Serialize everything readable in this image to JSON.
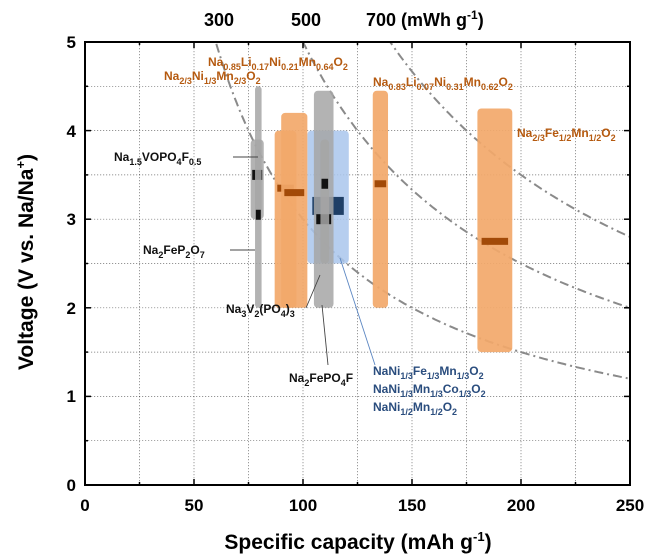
{
  "chart_data": {
    "type": "range",
    "xlabel": "Specific capacity (mAh g",
    "xlabel_sup": "-1",
    "xlabel_end": ")",
    "ylabel": "Voltage (V vs. Na/Na",
    "ylabel_sup": "+",
    "ylabel_end": ")",
    "xlim": [
      0,
      250
    ],
    "ylim": [
      0,
      5
    ],
    "x_ticks": [
      0,
      50,
      100,
      150,
      200,
      250
    ],
    "y_ticks": [
      0,
      1,
      2,
      3,
      4,
      5
    ],
    "grid": true,
    "top_axis": {
      "labels": [
        "300",
        "500",
        "700 (mWh g"
      ],
      "last_sup": "-1",
      "last_end": ")",
      "positions_x": [
        48,
        100,
        145
      ]
    },
    "energy_curves_mWh_per_g": [
      300,
      500,
      700
    ],
    "colors": {
      "orange": "#f2a86a",
      "orange_mark": "#a24a08",
      "orange_text": "#b55a10",
      "gray": "#a6a6a6",
      "gray_mark": "#111111",
      "blue": "#a9c6ec",
      "blue_mark": "#1f3f66",
      "blue_text": "#2a4d7e",
      "black_text": "#111111"
    },
    "materials": [
      {
        "name": "Na0.85Li0.17Ni0.21Mn0.64O2",
        "family": "orange",
        "x": [
          87,
          97
        ],
        "y": [
          2.0,
          4.0
        ],
        "mark": 3.35
      },
      {
        "name": "Na2/3Ni1/3Mn2/3O2",
        "family": "orange",
        "x": [
          90,
          102
        ],
        "y": [
          2.0,
          4.2
        ],
        "mark": 3.3
      },
      {
        "name": "Na0.83Li0.07Ni0.31Mn0.62O2",
        "family": "orange",
        "x": [
          132,
          139
        ],
        "y": [
          2.0,
          4.45
        ],
        "mark": 3.4
      },
      {
        "name": "Na2/3Fe1/2Mn1/2O2",
        "family": "orange",
        "x": [
          180,
          196
        ],
        "y": [
          1.5,
          4.25
        ],
        "mark": 2.75
      },
      {
        "name": "Na1.5VOPO4F0.5",
        "family": "gray",
        "x": [
          76,
          82
        ],
        "y": [
          3.0,
          3.9
        ],
        "mark": 3.5
      },
      {
        "name": "Na2FePO4F",
        "family": "gray",
        "x": [
          105,
          114
        ],
        "y": [
          2.0,
          4.45
        ],
        "mark": 3.0
      },
      {
        "name": "Na3V2(PO4)3",
        "family": "gray",
        "x": [
          108,
          112
        ],
        "y": [
          2.5,
          3.9
        ],
        "mark": 3.4
      },
      {
        "name": "Na2FeP2O7",
        "family": "gray",
        "x": [
          78,
          81
        ],
        "y": [
          2.0,
          4.5
        ],
        "mark": 3.05
      },
      {
        "name": "NaNi1/3Fe1/3Mn1/3O2",
        "family": "blue",
        "x": [
          102,
          121
        ],
        "y": [
          2.5,
          4.0
        ],
        "mark": 3.15
      }
    ],
    "labels": [
      {
        "id": "lNaLiNiMn1",
        "color": "orange_text"
      },
      {
        "id": "lNa23NiMn",
        "color": "orange_text"
      },
      {
        "id": "lNaLiNiMn2",
        "color": "orange_text"
      },
      {
        "id": "lNaFeMn",
        "color": "orange_text"
      },
      {
        "id": "lVOPO",
        "color": "black_text"
      },
      {
        "id": "lFeP2O7",
        "color": "black_text"
      },
      {
        "id": "lNVP",
        "color": "black_text"
      },
      {
        "id": "lFePO4F",
        "color": "black_text"
      },
      {
        "id": "lBlue",
        "color": "blue_text"
      }
    ]
  }
}
